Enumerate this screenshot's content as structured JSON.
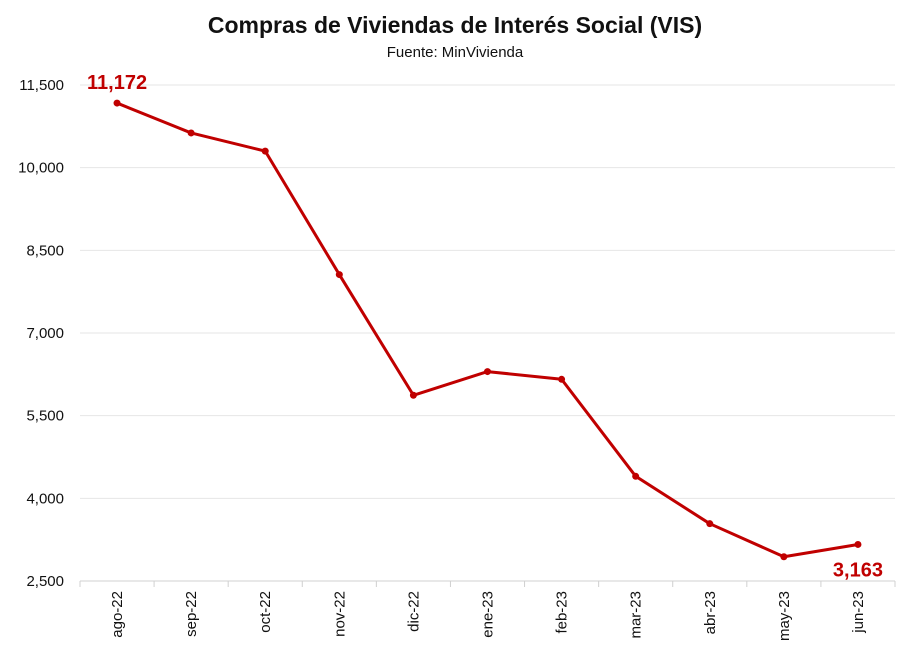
{
  "chart_data": {
    "type": "line",
    "title": "Compras de Viviendas de Interés Social (VIS)",
    "subtitle": "Fuente: MinVivienda",
    "categories": [
      "ago-22",
      "sep-22",
      "oct-22",
      "nov-22",
      "dic-22",
      "ene-23",
      "feb-23",
      "mar-23",
      "abr-23",
      "may-23",
      "jun-23"
    ],
    "series": [
      {
        "values": [
          11172,
          10630,
          10300,
          8060,
          5870,
          6300,
          6160,
          4400,
          3540,
          2940,
          3163
        ]
      }
    ],
    "ylim": [
      2500,
      11500
    ],
    "yticks": [
      2500,
      4000,
      5500,
      7000,
      8500,
      10000,
      11500
    ],
    "ytick_labels": [
      "2,500",
      "4,000",
      "5,500",
      "7,000",
      "8,500",
      "10,000",
      "11,500"
    ],
    "data_labels": [
      {
        "index": 0,
        "text": "11,172"
      },
      {
        "index": 10,
        "text": "3,163"
      }
    ],
    "grid": true,
    "legend": "none",
    "colors": {
      "line": "#c00000",
      "grid": "#e6e6e6",
      "axis": "#d0d0d0"
    }
  }
}
